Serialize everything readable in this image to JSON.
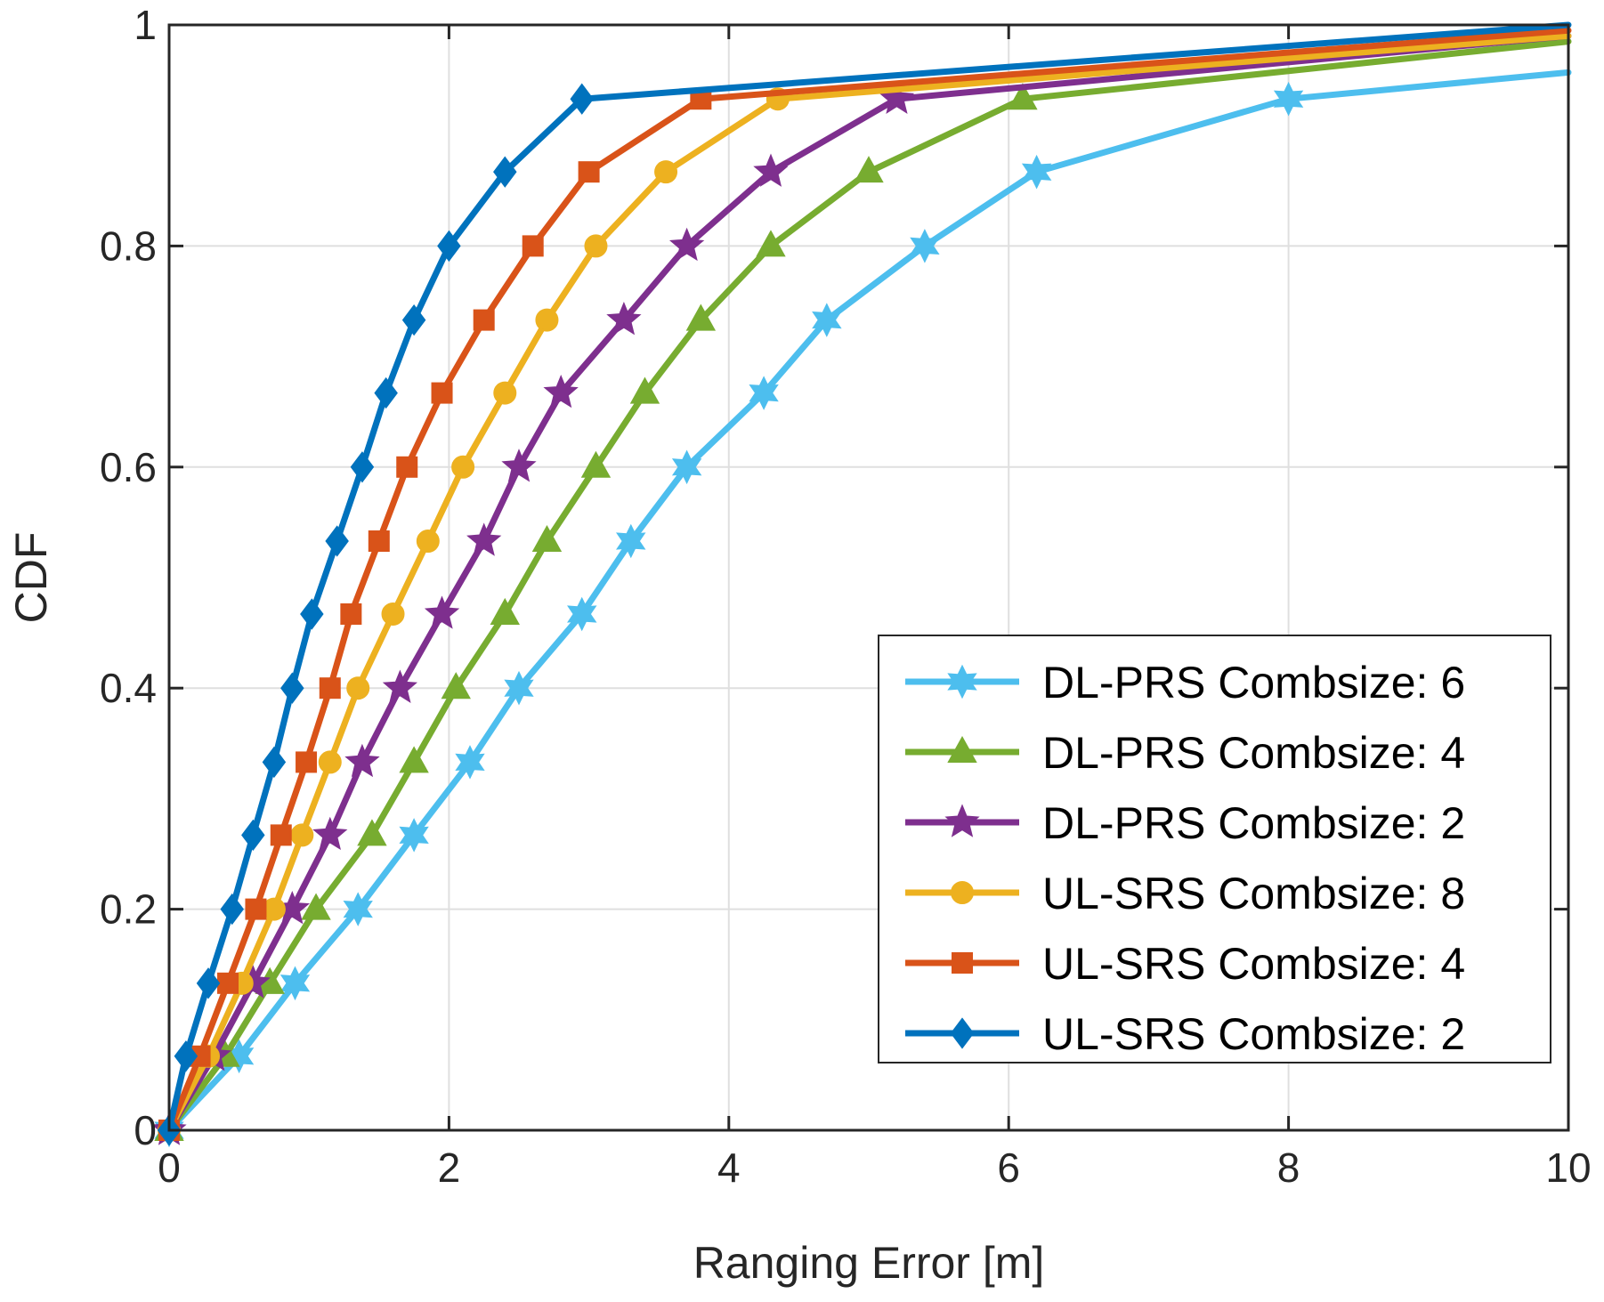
{
  "chart_data": {
    "type": "line",
    "title": "",
    "xlabel": "Ranging Error [m]",
    "ylabel": "CDF",
    "xlim": [
      0,
      10
    ],
    "ylim": [
      0,
      1
    ],
    "xticks": [
      "0",
      "2",
      "4",
      "6",
      "8",
      "10"
    ],
    "yticks": [
      "0",
      "0.2",
      "0.4",
      "0.6",
      "0.8",
      "1"
    ],
    "grid": true,
    "legend_position": "bottom-right",
    "series": [
      {
        "name": "DL-PRS Combsize: 6",
        "color": "#4DBEEE",
        "marker": "hexagram",
        "x": [
          0,
          0.5,
          0.9,
          1.35,
          1.75,
          2.15,
          2.5,
          2.95,
          3.3,
          3.7,
          4.25,
          4.7,
          5.4,
          6.2,
          8.0,
          10.0
        ],
        "y": [
          0,
          0.067,
          0.133,
          0.2,
          0.267,
          0.333,
          0.4,
          0.467,
          0.533,
          0.6,
          0.667,
          0.733,
          0.8,
          0.867,
          0.933,
          0.957
        ]
      },
      {
        "name": "DL-PRS Combsize: 4",
        "color": "#77AC30",
        "marker": "triangle",
        "x": [
          0,
          0.4,
          0.72,
          1.05,
          1.45,
          1.75,
          2.05,
          2.4,
          2.7,
          3.05,
          3.4,
          3.8,
          4.3,
          5.0,
          6.1,
          10.0
        ],
        "y": [
          0,
          0.067,
          0.133,
          0.2,
          0.267,
          0.333,
          0.4,
          0.467,
          0.533,
          0.6,
          0.667,
          0.733,
          0.8,
          0.867,
          0.933,
          0.985
        ]
      },
      {
        "name": "DL-PRS Combsize: 2",
        "color": "#7E2F8E",
        "marker": "pentagram",
        "x": [
          0,
          0.32,
          0.6,
          0.88,
          1.15,
          1.38,
          1.65,
          1.95,
          2.25,
          2.5,
          2.8,
          3.25,
          3.7,
          4.3,
          5.2,
          10.0
        ],
        "y": [
          0,
          0.067,
          0.133,
          0.2,
          0.267,
          0.333,
          0.4,
          0.467,
          0.533,
          0.6,
          0.667,
          0.733,
          0.8,
          0.867,
          0.933,
          0.99
        ]
      },
      {
        "name": "UL-SRS Combsize: 8",
        "color": "#EDB120",
        "marker": "circle",
        "x": [
          0,
          0.28,
          0.52,
          0.75,
          0.95,
          1.15,
          1.35,
          1.6,
          1.85,
          2.1,
          2.4,
          2.7,
          3.05,
          3.55,
          4.35,
          10.0
        ],
        "y": [
          0,
          0.067,
          0.133,
          0.2,
          0.267,
          0.333,
          0.4,
          0.467,
          0.533,
          0.6,
          0.667,
          0.733,
          0.8,
          0.867,
          0.933,
          0.99
        ]
      },
      {
        "name": "UL-SRS Combsize: 4",
        "color": "#D95319",
        "marker": "square",
        "x": [
          0,
          0.22,
          0.42,
          0.62,
          0.8,
          0.98,
          1.15,
          1.3,
          1.5,
          1.7,
          1.95,
          2.25,
          2.6,
          3.0,
          3.8,
          10.0
        ],
        "y": [
          0,
          0.067,
          0.133,
          0.2,
          0.267,
          0.333,
          0.4,
          0.467,
          0.533,
          0.6,
          0.667,
          0.733,
          0.8,
          0.867,
          0.933,
          0.995
        ]
      },
      {
        "name": "UL-SRS Combsize: 2",
        "color": "#0072BD",
        "marker": "diamond",
        "x": [
          0,
          0.12,
          0.28,
          0.45,
          0.6,
          0.75,
          0.88,
          1.02,
          1.2,
          1.38,
          1.55,
          1.75,
          2.0,
          2.4,
          2.95,
          10.0
        ],
        "y": [
          0,
          0.067,
          0.133,
          0.2,
          0.267,
          0.333,
          0.4,
          0.467,
          0.533,
          0.6,
          0.667,
          0.733,
          0.8,
          0.867,
          0.933,
          1.0
        ]
      }
    ]
  }
}
